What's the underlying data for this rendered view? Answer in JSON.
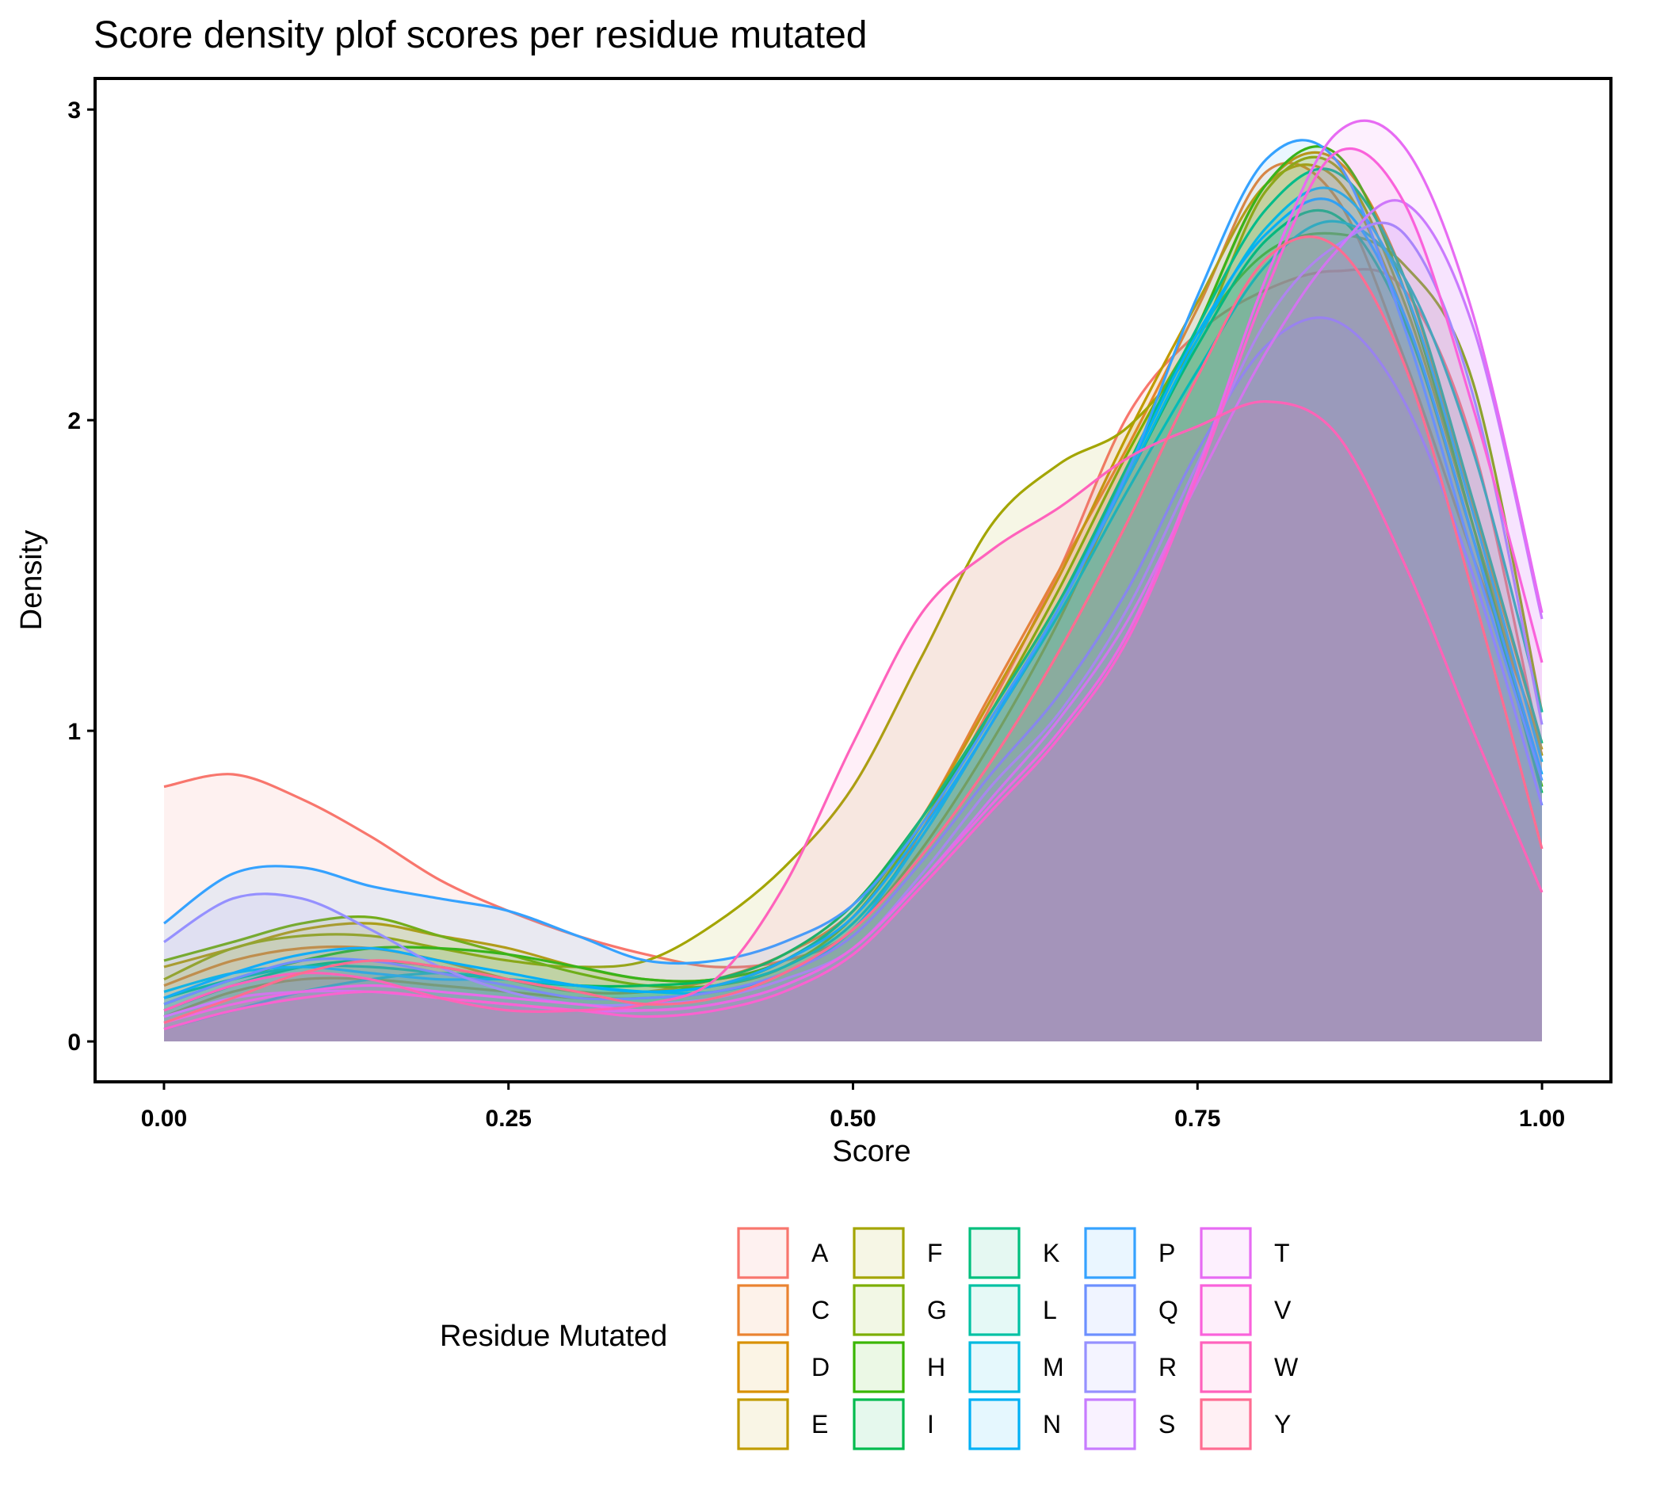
{
  "chart_data": {
    "type": "area",
    "title": "Score density plof scores per residue mutated",
    "xlabel": "Score",
    "ylabel": "Density",
    "xlim": [
      -0.05,
      1.05
    ],
    "ylim": [
      -0.13,
      3.1
    ],
    "x_ticks": [
      0,
      0.25,
      0.5,
      0.75,
      1
    ],
    "x_tick_labels": [
      "0.00",
      "0.25",
      "0.50",
      "0.75",
      "1.00"
    ],
    "y_ticks": [
      0,
      1,
      2,
      3
    ],
    "y_tick_labels": [
      "0",
      "1",
      "2",
      "3"
    ],
    "grid": false,
    "legend_position": "bottom",
    "legend_title": "Residue Mutated",
    "x": [
      0,
      0.05,
      0.1,
      0.15,
      0.2,
      0.25,
      0.3,
      0.35,
      0.4,
      0.45,
      0.5,
      0.55,
      0.6,
      0.65,
      0.7,
      0.75,
      0.8,
      0.85,
      0.9,
      0.95,
      1
    ],
    "series": [
      {
        "name": "A",
        "color": "#F8766D",
        "values": [
          0.82,
          0.86,
          0.78,
          0.66,
          0.52,
          0.42,
          0.34,
          0.28,
          0.24,
          0.26,
          0.36,
          0.68,
          1.08,
          1.52,
          2.02,
          2.28,
          2.42,
          2.48,
          2.42,
          1.92,
          0.92
        ]
      },
      {
        "name": "C",
        "color": "#EA8331",
        "values": [
          0.18,
          0.26,
          0.3,
          0.3,
          0.26,
          0.2,
          0.16,
          0.16,
          0.2,
          0.28,
          0.42,
          0.72,
          1.12,
          1.52,
          1.92,
          2.36,
          2.8,
          2.72,
          2.2,
          1.56,
          0.96
        ]
      },
      {
        "name": "D",
        "color": "#D89000",
        "values": [
          0.08,
          0.16,
          0.2,
          0.2,
          0.18,
          0.16,
          0.14,
          0.14,
          0.16,
          0.22,
          0.36,
          0.62,
          0.96,
          1.36,
          1.84,
          2.3,
          2.76,
          2.84,
          2.46,
          1.72,
          0.96
        ]
      },
      {
        "name": "E",
        "color": "#C09B00",
        "values": [
          0.24,
          0.3,
          0.36,
          0.38,
          0.34,
          0.3,
          0.24,
          0.2,
          0.2,
          0.26,
          0.42,
          0.72,
          1.1,
          1.5,
          1.96,
          2.38,
          2.76,
          2.78,
          2.34,
          1.62,
          0.94
        ]
      },
      {
        "name": "F",
        "color": "#A3A500",
        "values": [
          0.2,
          0.3,
          0.34,
          0.34,
          0.3,
          0.26,
          0.24,
          0.26,
          0.38,
          0.56,
          0.82,
          1.24,
          1.66,
          1.86,
          1.98,
          2.26,
          2.74,
          2.82,
          2.38,
          1.66,
          0.92
        ]
      },
      {
        "name": "G",
        "color": "#7CAE00",
        "values": [
          0.26,
          0.32,
          0.38,
          0.4,
          0.34,
          0.28,
          0.22,
          0.18,
          0.18,
          0.24,
          0.4,
          0.7,
          1.06,
          1.46,
          1.9,
          2.28,
          2.54,
          2.6,
          2.5,
          2.12,
          1.06
        ]
      },
      {
        "name": "H",
        "color": "#39B600",
        "values": [
          0.12,
          0.2,
          0.26,
          0.3,
          0.3,
          0.28,
          0.24,
          0.2,
          0.2,
          0.26,
          0.42,
          0.72,
          1.06,
          1.42,
          1.84,
          2.3,
          2.76,
          2.86,
          2.42,
          1.66,
          0.82
        ]
      },
      {
        "name": "I",
        "color": "#00BB4E",
        "values": [
          0.1,
          0.18,
          0.24,
          0.26,
          0.24,
          0.2,
          0.18,
          0.18,
          0.2,
          0.28,
          0.44,
          0.72,
          1.04,
          1.4,
          1.82,
          2.24,
          2.58,
          2.66,
          2.32,
          1.62,
          0.8
        ]
      },
      {
        "name": "K",
        "color": "#00BF7D",
        "values": [
          0.14,
          0.2,
          0.24,
          0.24,
          0.22,
          0.2,
          0.18,
          0.16,
          0.18,
          0.26,
          0.42,
          0.72,
          1.06,
          1.42,
          1.86,
          2.3,
          2.68,
          2.8,
          2.46,
          1.74,
          0.96
        ]
      },
      {
        "name": "L",
        "color": "#00C1A3",
        "values": [
          0.04,
          0.1,
          0.16,
          0.2,
          0.22,
          0.2,
          0.18,
          0.16,
          0.18,
          0.24,
          0.38,
          0.66,
          1.02,
          1.38,
          1.78,
          2.16,
          2.5,
          2.64,
          2.46,
          1.9,
          1.06
        ]
      },
      {
        "name": "M",
        "color": "#00BAE0",
        "values": [
          0.16,
          0.22,
          0.24,
          0.22,
          0.2,
          0.2,
          0.18,
          0.16,
          0.16,
          0.22,
          0.36,
          0.66,
          1.02,
          1.4,
          1.82,
          2.26,
          2.62,
          2.74,
          2.42,
          1.7,
          0.9
        ]
      },
      {
        "name": "N",
        "color": "#00B0F6",
        "values": [
          0.14,
          0.22,
          0.28,
          0.3,
          0.26,
          0.22,
          0.18,
          0.16,
          0.18,
          0.26,
          0.4,
          0.68,
          1.02,
          1.4,
          1.84,
          2.28,
          2.6,
          2.7,
          2.34,
          1.62,
          0.86
        ]
      },
      {
        "name": "P",
        "color": "#35A2FF",
        "values": [
          0.38,
          0.54,
          0.56,
          0.5,
          0.46,
          0.42,
          0.34,
          0.26,
          0.26,
          0.32,
          0.44,
          0.7,
          1.04,
          1.4,
          1.84,
          2.4,
          2.84,
          2.84,
          2.3,
          1.56,
          0.84
        ]
      },
      {
        "name": "Q",
        "color": "#6C8FFF",
        "values": [
          0.12,
          0.2,
          0.26,
          0.26,
          0.22,
          0.18,
          0.14,
          0.14,
          0.16,
          0.22,
          0.34,
          0.58,
          0.86,
          1.12,
          1.46,
          1.9,
          2.24,
          2.32,
          2.06,
          1.5,
          0.76
        ]
      },
      {
        "name": "R",
        "color": "#9590FF",
        "values": [
          0.32,
          0.46,
          0.46,
          0.36,
          0.24,
          0.16,
          0.12,
          0.12,
          0.14,
          0.2,
          0.3,
          0.54,
          0.82,
          1.06,
          1.4,
          1.86,
          2.32,
          2.56,
          2.6,
          2.08,
          1.02
        ]
      },
      {
        "name": "S",
        "color": "#C77CFF",
        "values": [
          0.08,
          0.14,
          0.16,
          0.16,
          0.14,
          0.12,
          0.1,
          0.1,
          0.12,
          0.18,
          0.3,
          0.52,
          0.78,
          1.04,
          1.36,
          1.8,
          2.22,
          2.54,
          2.7,
          2.3,
          1.36
        ]
      },
      {
        "name": "T",
        "color": "#E76BF3",
        "values": [
          0.06,
          0.12,
          0.16,
          0.18,
          0.16,
          0.14,
          0.12,
          0.1,
          0.12,
          0.18,
          0.3,
          0.52,
          0.76,
          1.0,
          1.32,
          1.84,
          2.46,
          2.92,
          2.88,
          2.34,
          1.38
        ]
      },
      {
        "name": "V",
        "color": "#FA62DB",
        "values": [
          0.04,
          0.1,
          0.14,
          0.16,
          0.14,
          0.12,
          0.1,
          0.08,
          0.1,
          0.16,
          0.28,
          0.5,
          0.74,
          0.98,
          1.3,
          1.82,
          2.42,
          2.86,
          2.7,
          2.04,
          1.22
        ]
      },
      {
        "name": "W",
        "color": "#FF62BC",
        "values": [
          0.1,
          0.18,
          0.22,
          0.2,
          0.14,
          0.1,
          0.1,
          0.12,
          0.2,
          0.5,
          0.96,
          1.38,
          1.58,
          1.72,
          1.88,
          1.98,
          2.06,
          1.96,
          1.54,
          1.0,
          0.48
        ]
      },
      {
        "name": "Y",
        "color": "#FF6C91",
        "values": [
          0.06,
          0.14,
          0.22,
          0.26,
          0.24,
          0.2,
          0.16,
          0.12,
          0.14,
          0.22,
          0.36,
          0.6,
          0.9,
          1.26,
          1.68,
          2.14,
          2.52,
          2.56,
          2.18,
          1.44,
          0.62
        ]
      }
    ]
  }
}
